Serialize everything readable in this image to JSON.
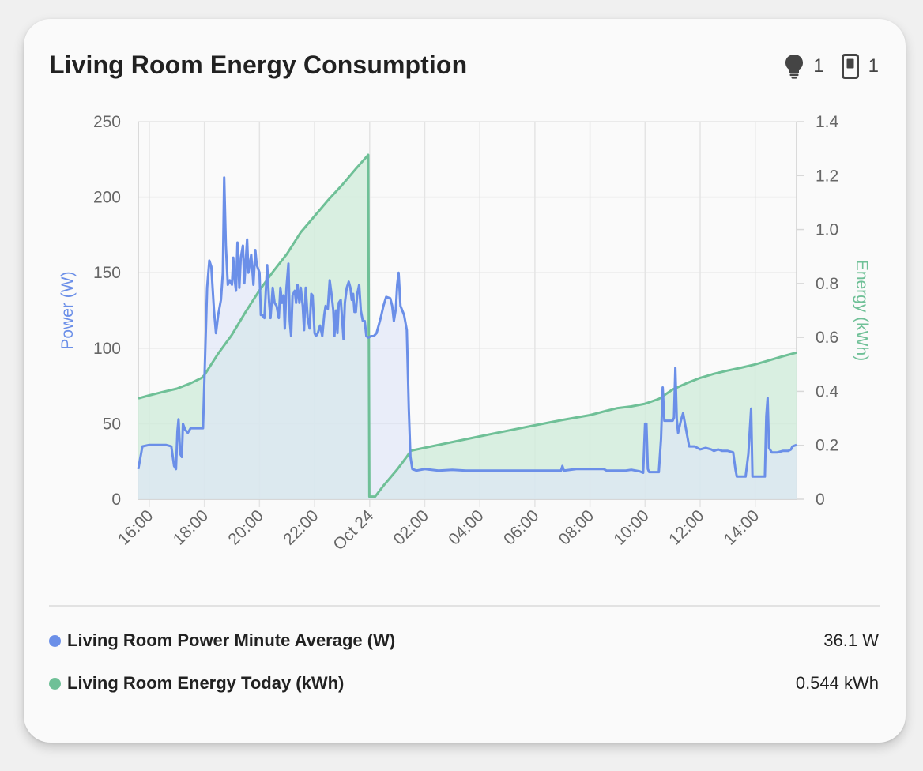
{
  "card": {
    "title": "Living Room Energy Consumption",
    "badges": [
      {
        "icon": "lightbulb-icon",
        "count": "1"
      },
      {
        "icon": "switch-icon",
        "count": "1"
      }
    ]
  },
  "chart_data": {
    "type": "line",
    "title": "Living Room Energy Consumption",
    "x_tick_labels": [
      "16:00",
      "18:00",
      "20:00",
      "22:00",
      "Oct 24",
      "02:00",
      "04:00",
      "06:00",
      "08:00",
      "10:00",
      "12:00",
      "14:00"
    ],
    "x_range_hours": [
      15.6,
      39.5
    ],
    "y_left": {
      "label": "Power (W)",
      "range": [
        0,
        250
      ],
      "ticks": [
        "0",
        "50",
        "100",
        "150",
        "200",
        "250"
      ]
    },
    "y_right": {
      "label": "Energy (kWh)",
      "range": [
        0,
        1.4
      ],
      "ticks": [
        "0",
        "0.2",
        "0.4",
        "0.6",
        "0.8",
        "1.0",
        "1.2",
        "1.4"
      ]
    },
    "grid": true,
    "series": [
      {
        "name": "Living Room Power Minute Average (W)",
        "axis": "left",
        "color": "#6b8fe8",
        "fill": "#dde4f8",
        "points": [
          [
            15.6,
            20
          ],
          [
            15.75,
            35
          ],
          [
            16.0,
            36
          ],
          [
            16.3,
            36
          ],
          [
            16.6,
            36
          ],
          [
            16.8,
            35
          ],
          [
            16.9,
            22
          ],
          [
            16.97,
            20
          ],
          [
            17.02,
            45
          ],
          [
            17.06,
            53
          ],
          [
            17.12,
            30
          ],
          [
            17.18,
            28
          ],
          [
            17.22,
            50
          ],
          [
            17.3,
            46
          ],
          [
            17.4,
            44
          ],
          [
            17.5,
            47
          ],
          [
            17.7,
            47
          ],
          [
            17.95,
            47
          ],
          [
            18.1,
            140
          ],
          [
            18.18,
            158
          ],
          [
            18.25,
            154
          ],
          [
            18.35,
            125
          ],
          [
            18.42,
            110
          ],
          [
            18.5,
            122
          ],
          [
            18.6,
            132
          ],
          [
            18.67,
            150
          ],
          [
            18.72,
            213
          ],
          [
            18.78,
            168
          ],
          [
            18.85,
            142
          ],
          [
            18.92,
            145
          ],
          [
            19.0,
            142
          ],
          [
            19.05,
            160
          ],
          [
            19.1,
            145
          ],
          [
            19.15,
            138
          ],
          [
            19.2,
            170
          ],
          [
            19.27,
            140
          ],
          [
            19.32,
            160
          ],
          [
            19.4,
            168
          ],
          [
            19.45,
            143
          ],
          [
            19.55,
            172
          ],
          [
            19.6,
            150
          ],
          [
            19.7,
            162
          ],
          [
            19.78,
            142
          ],
          [
            19.85,
            165
          ],
          [
            19.9,
            155
          ],
          [
            20.0,
            150
          ],
          [
            20.05,
            122
          ],
          [
            20.1,
            122
          ],
          [
            20.18,
            120
          ],
          [
            20.28,
            155
          ],
          [
            20.35,
            130
          ],
          [
            20.4,
            120
          ],
          [
            20.48,
            140
          ],
          [
            20.55,
            130
          ],
          [
            20.62,
            128
          ],
          [
            20.7,
            120
          ],
          [
            20.76,
            140
          ],
          [
            20.82,
            130
          ],
          [
            20.88,
            135
          ],
          [
            20.92,
            113
          ],
          [
            20.98,
            140
          ],
          [
            21.05,
            156
          ],
          [
            21.1,
            118
          ],
          [
            21.15,
            108
          ],
          [
            21.2,
            135
          ],
          [
            21.28,
            138
          ],
          [
            21.33,
            130
          ],
          [
            21.38,
            142
          ],
          [
            21.45,
            130
          ],
          [
            21.5,
            140
          ],
          [
            21.57,
            128
          ],
          [
            21.62,
            112
          ],
          [
            21.68,
            140
          ],
          [
            21.75,
            120
          ],
          [
            21.82,
            113
          ],
          [
            21.88,
            136
          ],
          [
            21.93,
            135
          ],
          [
            22.0,
            110
          ],
          [
            22.05,
            108
          ],
          [
            22.12,
            110
          ],
          [
            22.2,
            115
          ],
          [
            22.28,
            108
          ],
          [
            22.35,
            122
          ],
          [
            22.4,
            128
          ],
          [
            22.48,
            126
          ],
          [
            22.55,
            145
          ],
          [
            22.62,
            135
          ],
          [
            22.68,
            125
          ],
          [
            22.72,
            108
          ],
          [
            22.78,
            125
          ],
          [
            22.83,
            110
          ],
          [
            22.88,
            130
          ],
          [
            22.95,
            132
          ],
          [
            23.0,
            120
          ],
          [
            23.05,
            106
          ],
          [
            23.1,
            130
          ],
          [
            23.17,
            140
          ],
          [
            23.24,
            144
          ],
          [
            23.3,
            140
          ],
          [
            23.35,
            132
          ],
          [
            23.4,
            136
          ],
          [
            23.45,
            124
          ],
          [
            23.5,
            124
          ],
          [
            23.55,
            136
          ],
          [
            23.62,
            142
          ],
          [
            23.68,
            125
          ],
          [
            23.75,
            118
          ],
          [
            23.82,
            118
          ],
          [
            23.88,
            108
          ],
          [
            23.95,
            107
          ],
          [
            24.05,
            108
          ],
          [
            24.15,
            108
          ],
          [
            24.25,
            110
          ],
          [
            24.4,
            120
          ],
          [
            24.5,
            128
          ],
          [
            24.6,
            134
          ],
          [
            24.75,
            133
          ],
          [
            24.82,
            128
          ],
          [
            24.88,
            118
          ],
          [
            24.95,
            126
          ],
          [
            25.0,
            142
          ],
          [
            25.05,
            150
          ],
          [
            25.12,
            128
          ],
          [
            25.25,
            122
          ],
          [
            25.35,
            112
          ],
          [
            25.42,
            60
          ],
          [
            25.48,
            28
          ],
          [
            25.55,
            20
          ],
          [
            25.7,
            19
          ],
          [
            26.0,
            20
          ],
          [
            26.5,
            19
          ],
          [
            27.0,
            19.5
          ],
          [
            27.5,
            19
          ],
          [
            28.0,
            19
          ],
          [
            28.5,
            19
          ],
          [
            29.0,
            19
          ],
          [
            29.5,
            19
          ],
          [
            30.0,
            19
          ],
          [
            30.5,
            19
          ],
          [
            30.95,
            19
          ],
          [
            31.0,
            22
          ],
          [
            31.05,
            19
          ],
          [
            31.5,
            20
          ],
          [
            32.0,
            20
          ],
          [
            32.5,
            20
          ],
          [
            32.6,
            19
          ],
          [
            32.8,
            19
          ],
          [
            33.3,
            19
          ],
          [
            33.5,
            19.5
          ],
          [
            33.8,
            18.5
          ],
          [
            33.93,
            17.5
          ],
          [
            34.0,
            50
          ],
          [
            34.05,
            50
          ],
          [
            34.1,
            20
          ],
          [
            34.15,
            18
          ],
          [
            34.3,
            18
          ],
          [
            34.5,
            18
          ],
          [
            34.58,
            40
          ],
          [
            34.64,
            74
          ],
          [
            34.7,
            52
          ],
          [
            34.8,
            52
          ],
          [
            35.0,
            52
          ],
          [
            35.05,
            54
          ],
          [
            35.1,
            87
          ],
          [
            35.15,
            53
          ],
          [
            35.2,
            44
          ],
          [
            35.3,
            52
          ],
          [
            35.38,
            57
          ],
          [
            35.5,
            45
          ],
          [
            35.6,
            35
          ],
          [
            35.8,
            35
          ],
          [
            36.0,
            33
          ],
          [
            36.2,
            34
          ],
          [
            36.4,
            33
          ],
          [
            36.5,
            32
          ],
          [
            36.65,
            33
          ],
          [
            36.8,
            32
          ],
          [
            37.0,
            32
          ],
          [
            37.2,
            31
          ],
          [
            37.28,
            20
          ],
          [
            37.33,
            15
          ],
          [
            37.5,
            15
          ],
          [
            37.65,
            15
          ],
          [
            37.75,
            30
          ],
          [
            37.85,
            60
          ],
          [
            37.9,
            15
          ],
          [
            38.0,
            15
          ],
          [
            38.2,
            15
          ],
          [
            38.35,
            15
          ],
          [
            38.4,
            55
          ],
          [
            38.45,
            67
          ],
          [
            38.5,
            34
          ],
          [
            38.6,
            31
          ],
          [
            38.8,
            31
          ],
          [
            39.0,
            32
          ],
          [
            39.2,
            32
          ],
          [
            39.3,
            33
          ],
          [
            39.35,
            35
          ],
          [
            39.5,
            36
          ]
        ]
      },
      {
        "name": "Living Room Energy Today (kWh)",
        "axis": "right",
        "color": "#6fc097",
        "fill": "#d2ecdc",
        "points": [
          [
            15.6,
            0.374
          ],
          [
            16.0,
            0.385
          ],
          [
            16.5,
            0.398
          ],
          [
            17.0,
            0.41
          ],
          [
            17.5,
            0.43
          ],
          [
            17.9,
            0.45
          ],
          [
            18.0,
            0.46
          ],
          [
            18.5,
            0.54
          ],
          [
            19.0,
            0.61
          ],
          [
            19.5,
            0.695
          ],
          [
            20.0,
            0.775
          ],
          [
            20.5,
            0.845
          ],
          [
            21.0,
            0.91
          ],
          [
            21.5,
            0.99
          ],
          [
            22.0,
            1.05
          ],
          [
            22.5,
            1.11
          ],
          [
            23.0,
            1.165
          ],
          [
            23.5,
            1.225
          ],
          [
            23.95,
            1.277
          ],
          [
            23.99,
            0.01
          ],
          [
            24.2,
            0.01
          ],
          [
            24.5,
            0.05
          ],
          [
            25.0,
            0.11
          ],
          [
            25.35,
            0.158
          ],
          [
            25.5,
            0.18
          ],
          [
            26.0,
            0.191
          ],
          [
            27.0,
            0.212
          ],
          [
            28.0,
            0.233
          ],
          [
            29.0,
            0.254
          ],
          [
            30.0,
            0.274
          ],
          [
            31.0,
            0.294
          ],
          [
            32.0,
            0.312
          ],
          [
            32.6,
            0.328
          ],
          [
            33.0,
            0.338
          ],
          [
            33.5,
            0.344
          ],
          [
            34.0,
            0.354
          ],
          [
            34.5,
            0.372
          ],
          [
            35.0,
            0.407
          ],
          [
            35.5,
            0.43
          ],
          [
            36.0,
            0.45
          ],
          [
            36.5,
            0.465
          ],
          [
            37.0,
            0.477
          ],
          [
            37.5,
            0.488
          ],
          [
            38.0,
            0.5
          ],
          [
            38.5,
            0.515
          ],
          [
            39.0,
            0.53
          ],
          [
            39.5,
            0.544
          ]
        ]
      }
    ]
  },
  "legend": [
    {
      "label": "Living Room Power Minute Average (W)",
      "value": "36.1 W",
      "color": "#6b8fe8"
    },
    {
      "label": "Living Room Energy Today (kWh)",
      "value": "0.544 kWh",
      "color": "#6fc097"
    }
  ]
}
